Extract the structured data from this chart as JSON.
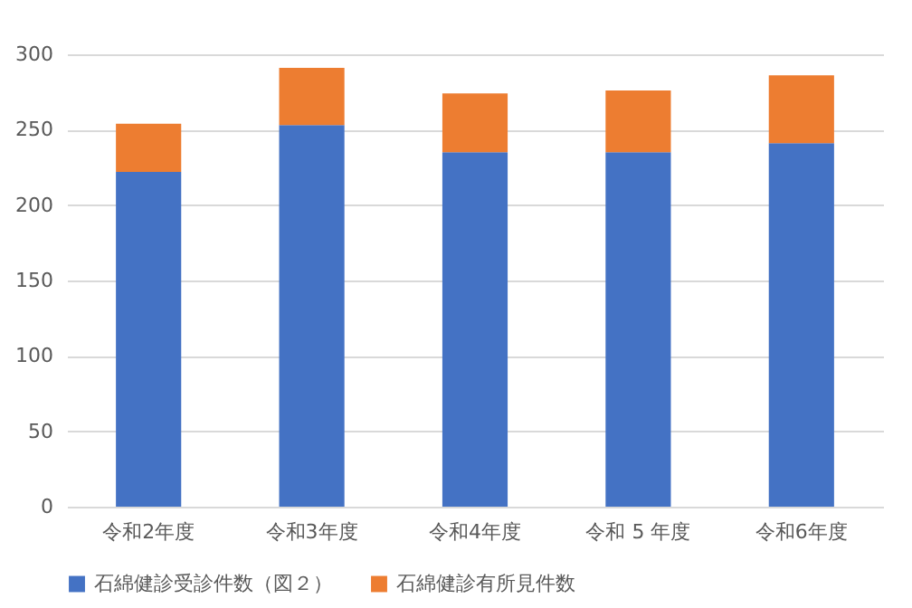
{
  "chart_data": {
    "type": "bar",
    "stacked": true,
    "categories": [
      "令和2年度",
      "令和3年度",
      "令和4年度",
      "令和 5 年度",
      "令和6年度"
    ],
    "series": [
      {
        "name": "石綿健診受診件数（図２）",
        "color": "#4472c4",
        "values": [
          222,
          253,
          235,
          235,
          241
        ]
      },
      {
        "name": "石綿健診有所見件数",
        "color": "#ed7d31",
        "values": [
          32,
          38,
          39,
          41,
          45
        ]
      }
    ],
    "ylim": [
      0,
      300
    ],
    "yticks": [
      0,
      50,
      100,
      150,
      200,
      250,
      300
    ],
    "grid": "y",
    "legend": "bottom"
  }
}
